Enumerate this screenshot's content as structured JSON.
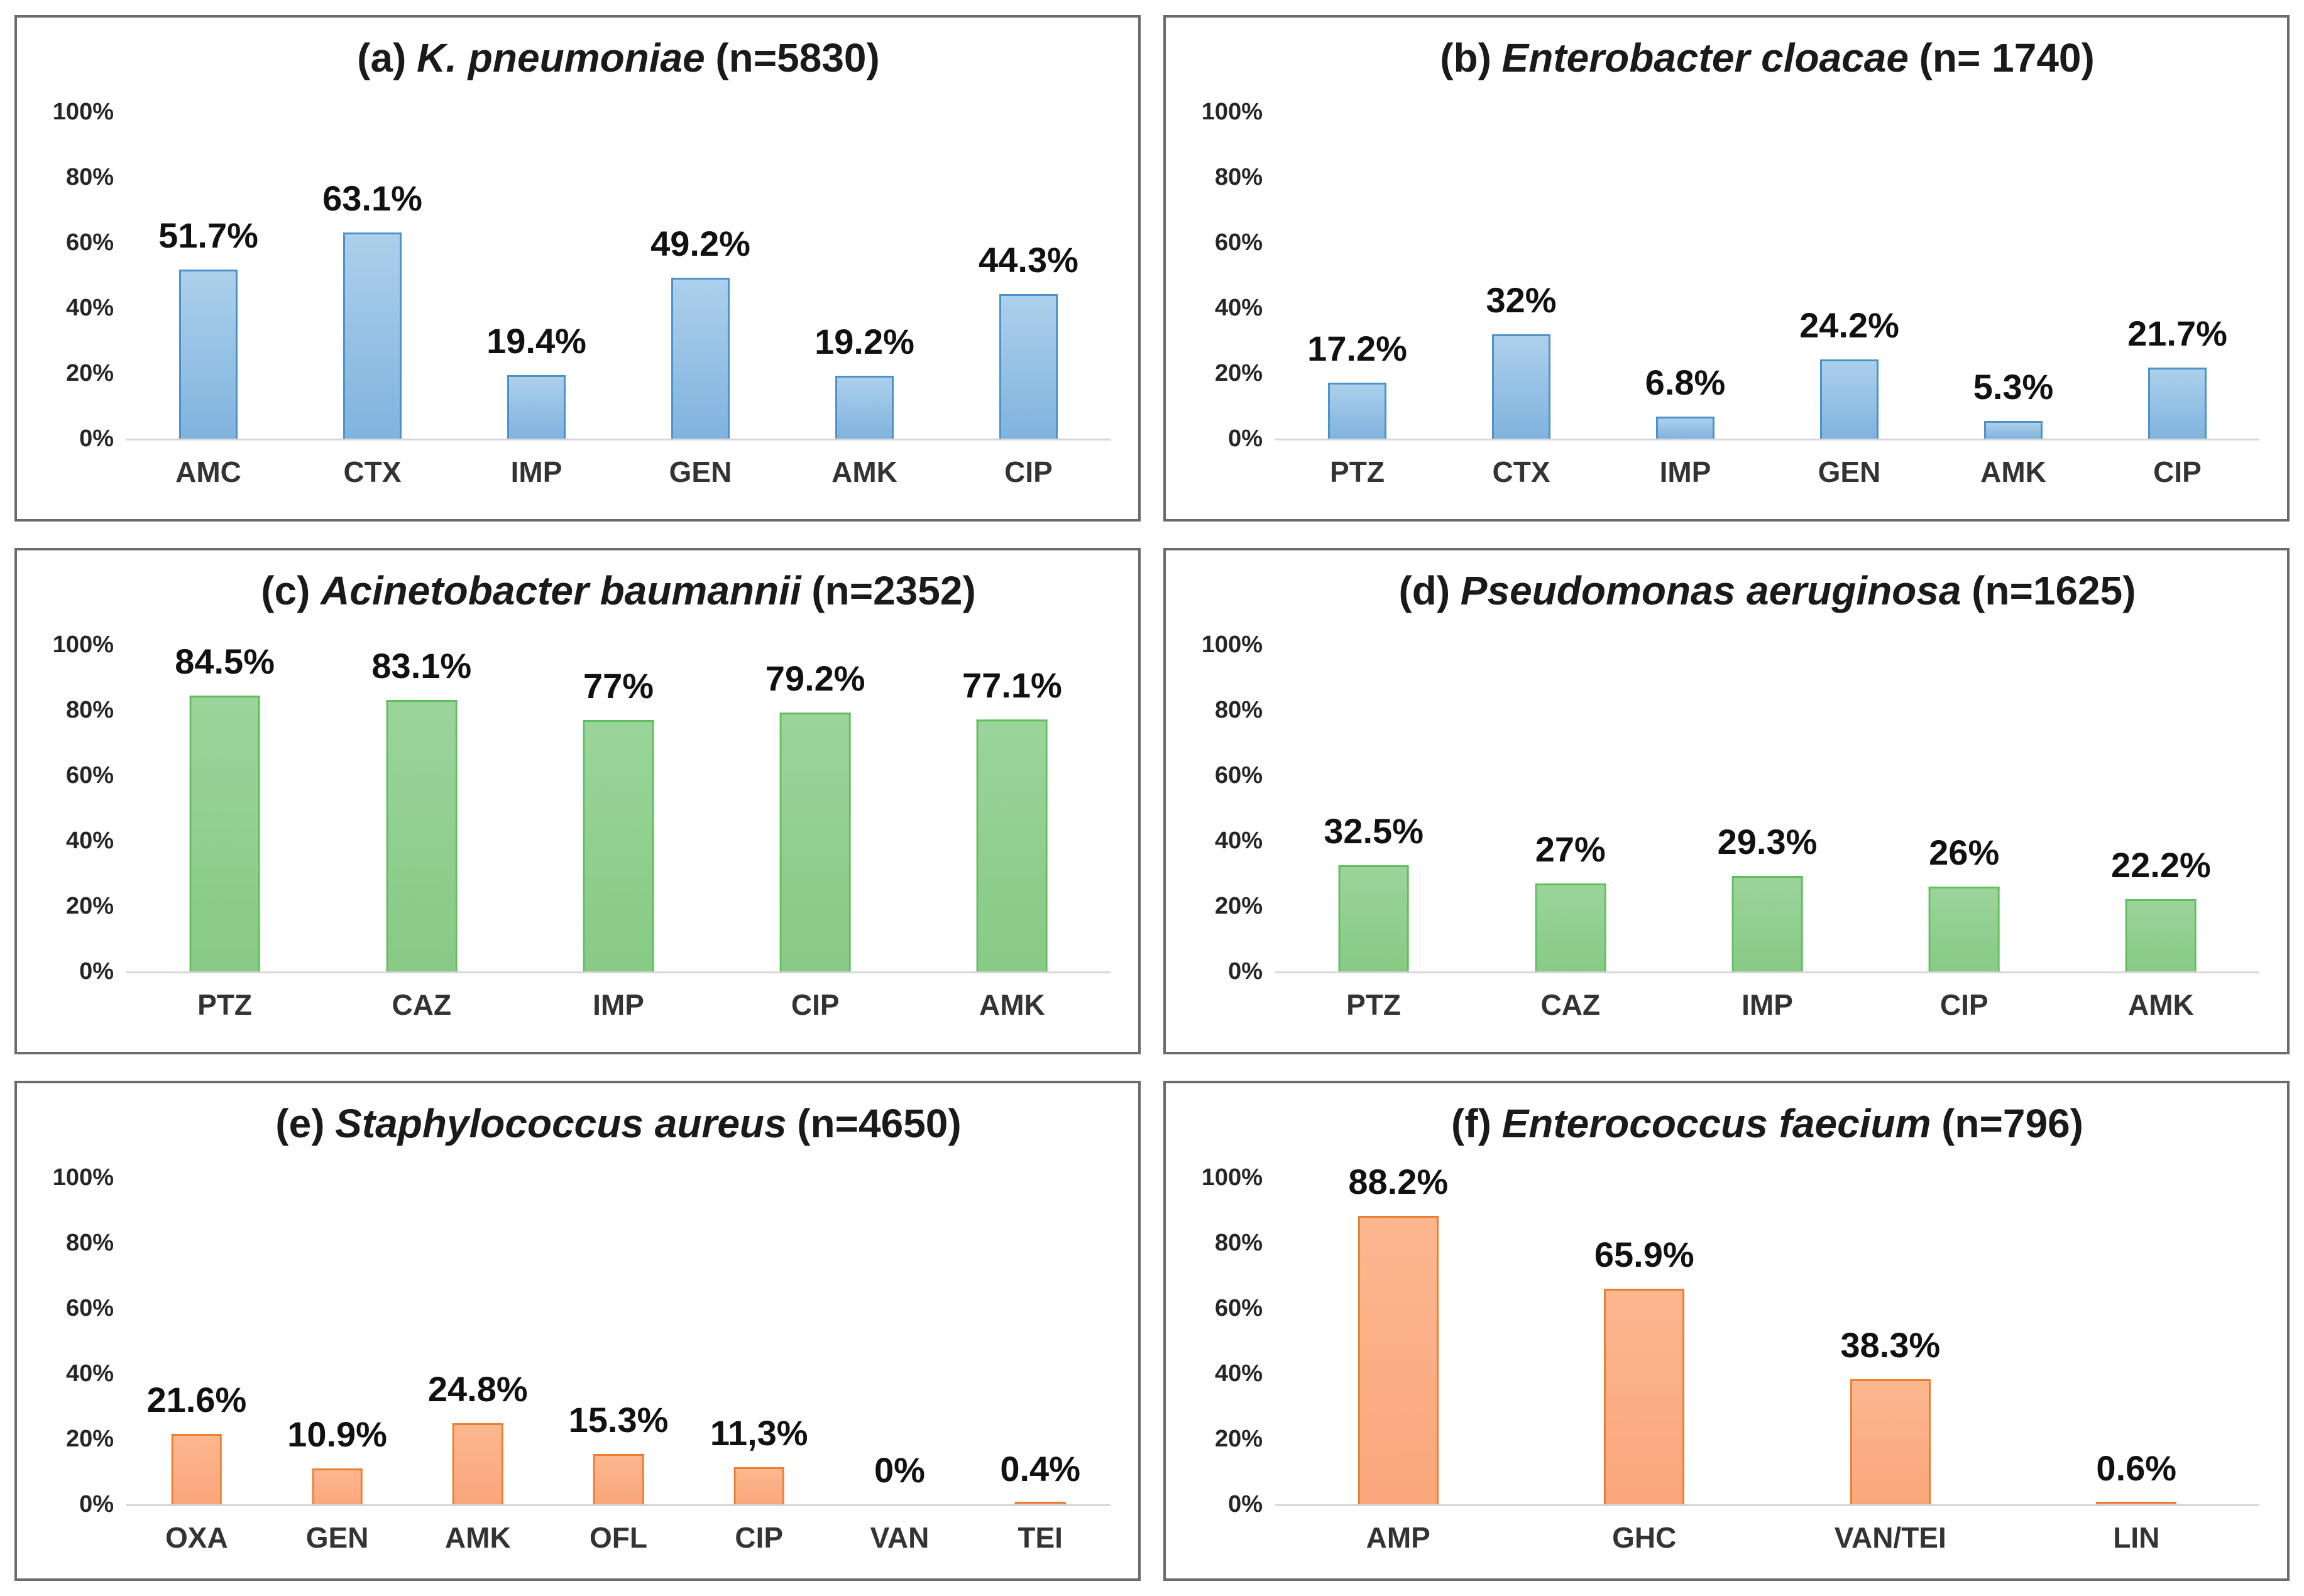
{
  "figure_styles": {
    "background": "#FFFFFF",
    "panel_border": "#6B6B6B",
    "baseline": "#D6D6D6",
    "text": "#1A1A1A"
  },
  "chart_data": [
    {
      "type": "bar",
      "panel": "a",
      "title": "(a) K. pneumoniae (n=5830)",
      "title_parts": {
        "prefix": "(a)",
        "species": "K. pneumoniae",
        "n": "(n=5830)"
      },
      "categories": [
        "AMC",
        "CTX",
        "IMP",
        "GEN",
        "AMK",
        "CIP"
      ],
      "values": [
        51.7,
        63.1,
        19.4,
        49.2,
        19.2,
        44.3
      ],
      "labels": [
        "51.7%",
        "63.1%",
        "19.4%",
        "49.2%",
        "19.2%",
        "44.3%"
      ],
      "xlabel": "",
      "ylabel": "",
      "ylim": [
        0,
        100
      ],
      "grid": false,
      "legend": "none",
      "y_axis": {
        "ticks": [
          {
            "label": "100%",
            "value": 100
          },
          {
            "label": "80%",
            "value": 80
          },
          {
            "label": "60%",
            "value": 60
          },
          {
            "label": "40%",
            "value": 40
          },
          {
            "label": "20%",
            "value": 20
          },
          {
            "label": "0%",
            "value": 0
          }
        ]
      },
      "palette": {
        "fill_top": "#ACD0EB",
        "fill_bottom": "#80B3DE",
        "border": "#4D91CB"
      }
    },
    {
      "type": "bar",
      "panel": "b",
      "title": "(b) Enterobacter cloacae (n= 1740)",
      "title_parts": {
        "prefix": "(b)",
        "species": "Enterobacter cloacae",
        "n": "(n= 1740)"
      },
      "categories": [
        "PTZ",
        "CTX",
        "IMP",
        "GEN",
        "AMK",
        "CIP"
      ],
      "values": [
        17.2,
        32,
        6.8,
        24.2,
        5.3,
        21.7
      ],
      "labels": [
        "17.2%",
        "32%",
        "6.8%",
        "24.2%",
        "5.3%",
        "21.7%"
      ],
      "xlabel": "",
      "ylabel": "",
      "ylim": [
        0,
        100
      ],
      "grid": false,
      "legend": "none",
      "y_axis": {
        "ticks": [
          {
            "label": "100%",
            "value": 100
          },
          {
            "label": "80%",
            "value": 80
          },
          {
            "label": "60%",
            "value": 60
          },
          {
            "label": "40%",
            "value": 40
          },
          {
            "label": "20%",
            "value": 20
          },
          {
            "label": "0%",
            "value": 0
          }
        ]
      },
      "palette": {
        "fill_top": "#ACD0EB",
        "fill_bottom": "#80B3DE",
        "border": "#4D91CB"
      }
    },
    {
      "type": "bar",
      "panel": "c",
      "title": "(c) Acinetobacter baumannii (n=2352)",
      "title_parts": {
        "prefix": "(c)",
        "species": "Acinetobacter baumannii",
        "n": "(n=2352)"
      },
      "categories": [
        "PTZ",
        "CAZ",
        "IMP",
        "CIP",
        "AMK"
      ],
      "values": [
        84.5,
        83.1,
        77,
        79.2,
        77.1
      ],
      "labels": [
        "84.5%",
        "83.1%",
        "77%",
        "79.2%",
        "77.1%"
      ],
      "xlabel": "",
      "ylabel": "",
      "ylim": [
        0,
        100
      ],
      "grid": false,
      "legend": "none",
      "y_axis": {
        "ticks": [
          {
            "label": "100%",
            "value": 100
          },
          {
            "label": "80%",
            "value": 80
          },
          {
            "label": "60%",
            "value": 60
          },
          {
            "label": "40%",
            "value": 40
          },
          {
            "label": "20%",
            "value": 20
          },
          {
            "label": "0%",
            "value": 0
          }
        ]
      },
      "palette": {
        "fill_top": "#9BD49A",
        "fill_bottom": "#87CA85",
        "border": "#5FBE5D"
      }
    },
    {
      "type": "bar",
      "panel": "d",
      "title": "(d) Pseudomonas aeruginosa (n=1625)",
      "title_parts": {
        "prefix": "(d)",
        "species": "Pseudomonas aeruginosa",
        "n": "(n=1625)"
      },
      "categories": [
        "PTZ",
        "CAZ",
        "IMP",
        "CIP",
        "AMK"
      ],
      "values": [
        32.5,
        27,
        29.3,
        26,
        22.2
      ],
      "labels": [
        "32.5%",
        "27%",
        "29.3%",
        "26%",
        "22.2%"
      ],
      "xlabel": "",
      "ylabel": "",
      "ylim": [
        0,
        100
      ],
      "grid": false,
      "legend": "none",
      "y_axis": {
        "ticks": [
          {
            "label": "100%",
            "value": 100
          },
          {
            "label": "80%",
            "value": 80
          },
          {
            "label": "60%",
            "value": 60
          },
          {
            "label": "40%",
            "value": 40
          },
          {
            "label": "20%",
            "value": 20
          },
          {
            "label": "0%",
            "value": 0
          }
        ]
      },
      "palette": {
        "fill_top": "#9BD49A",
        "fill_bottom": "#87CA85",
        "border": "#5FBE5D"
      }
    },
    {
      "type": "bar",
      "panel": "e",
      "title": "(e) Staphylococcus aureus (n=4650)",
      "title_parts": {
        "prefix": "(e)",
        "species": "Staphylococcus aureus",
        "n": "(n=4650)"
      },
      "categories": [
        "OXA",
        "GEN",
        "AMK",
        "OFL",
        "CIP",
        "VAN",
        "TEI"
      ],
      "values": [
        21.6,
        10.9,
        24.8,
        15.3,
        11.3,
        0,
        0.4
      ],
      "labels": [
        "21.6%",
        "10.9%",
        "24.8%",
        "15.3%",
        "11,3%",
        "0%",
        "0.4%"
      ],
      "xlabel": "",
      "ylabel": "",
      "ylim": [
        0,
        100
      ],
      "grid": false,
      "legend": "none",
      "y_axis": {
        "ticks": [
          {
            "label": "100%",
            "value": 100
          },
          {
            "label": "80%",
            "value": 80
          },
          {
            "label": "60%",
            "value": 60
          },
          {
            "label": "40%",
            "value": 40
          },
          {
            "label": "20%",
            "value": 20
          },
          {
            "label": "0%",
            "value": 0
          }
        ]
      },
      "palette": {
        "fill_top": "#FCB78F",
        "fill_bottom": "#FAA67C",
        "border": "#ED7D31"
      }
    },
    {
      "type": "bar",
      "panel": "f",
      "title": "(f) Enterococcus faecium (n=796)",
      "title_parts": {
        "prefix": "(f)",
        "species": "Enterococcus faecium",
        "n": "(n=796)"
      },
      "categories": [
        "AMP",
        "GHC",
        "VAN/TEI",
        "LIN"
      ],
      "values": [
        88.2,
        65.9,
        38.3,
        0.6
      ],
      "labels": [
        "88.2%",
        "65.9%",
        "38.3%",
        "0.6%"
      ],
      "xlabel": "",
      "ylabel": "",
      "ylim": [
        0,
        100
      ],
      "grid": false,
      "legend": "none",
      "y_axis": {
        "ticks": [
          {
            "label": "100%",
            "value": 100
          },
          {
            "label": "80%",
            "value": 80
          },
          {
            "label": "60%",
            "value": 60
          },
          {
            "label": "40%",
            "value": 40
          },
          {
            "label": "20%",
            "value": 20
          },
          {
            "label": "0%",
            "value": 0
          }
        ]
      },
      "palette": {
        "fill_top": "#FCB78F",
        "fill_bottom": "#FAA67C",
        "border": "#ED7D31"
      }
    }
  ]
}
